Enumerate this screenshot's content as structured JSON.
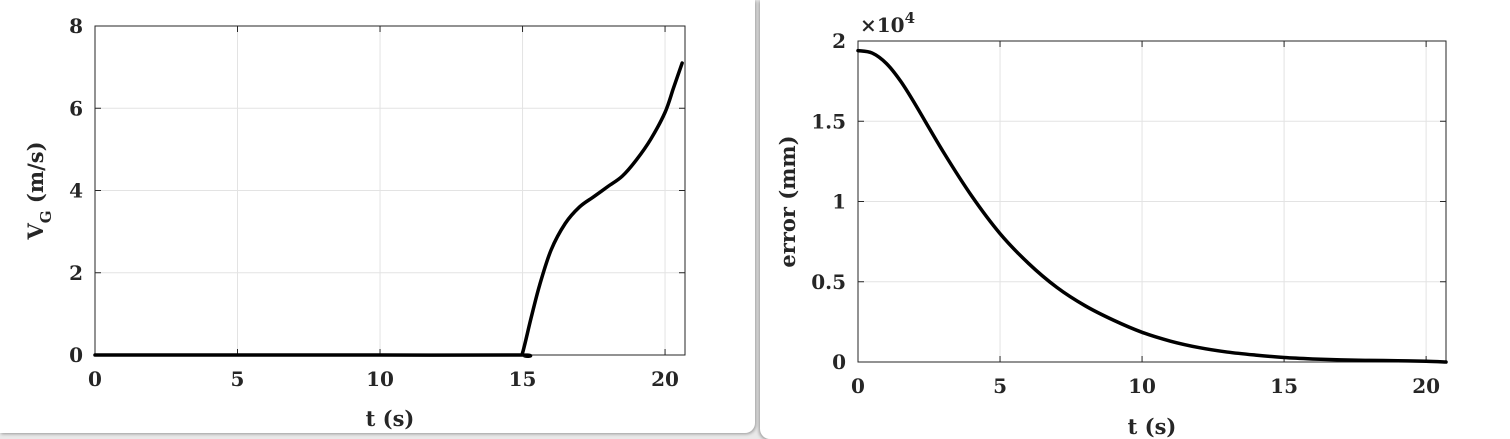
{
  "chart_data": [
    {
      "type": "line",
      "title": "",
      "xlabel": "t (s)",
      "ylabel": "V",
      "ylabel_subscript": "G",
      "ylabel_suffix": "(m/s)",
      "xlim": [
        0,
        20.7
      ],
      "ylim": [
        0,
        8
      ],
      "xticks": [
        0,
        5,
        10,
        15,
        20
      ],
      "yticks": [
        0,
        2,
        4,
        6,
        8
      ],
      "xtick_labels": [
        "0",
        "5",
        "10",
        "15",
        "20"
      ],
      "ytick_labels": [
        "0",
        "2",
        "4",
        "6",
        "8"
      ],
      "grid": true,
      "series": [
        {
          "x": [
            0,
            5,
            10,
            14.9,
            15.0,
            15.3,
            15.6,
            16.0,
            16.5,
            17.0,
            17.5,
            18.0,
            18.5,
            19.0,
            19.5,
            20.0,
            20.3,
            20.6
          ],
          "y": [
            0,
            0,
            0,
            0,
            0.05,
            0.9,
            1.7,
            2.55,
            3.2,
            3.6,
            3.85,
            4.1,
            4.35,
            4.75,
            5.25,
            5.9,
            6.5,
            7.1
          ]
        }
      ]
    },
    {
      "type": "line",
      "title": "",
      "xlabel": "t (s)",
      "ylabel": "error (mm)",
      "exponent_label": "×10",
      "exponent_power": "4",
      "xlim": [
        0,
        20.7
      ],
      "ylim": [
        0,
        20000
      ],
      "xticks": [
        0,
        5,
        10,
        15,
        20
      ],
      "yticks": [
        0,
        5000,
        10000,
        15000,
        20000
      ],
      "xtick_labels": [
        "0",
        "5",
        "10",
        "15",
        "20"
      ],
      "ytick_labels": [
        "0",
        "0.5",
        "1",
        "1.5",
        "2"
      ],
      "grid": true,
      "series": [
        {
          "x": [
            0,
            0.5,
            1,
            1.5,
            2,
            3,
            4,
            5,
            6,
            7,
            8,
            9,
            10,
            11,
            12,
            13,
            14,
            15,
            16,
            17,
            18,
            19,
            20,
            20.7
          ],
          "y": [
            19400,
            19250,
            18600,
            17500,
            16100,
            13100,
            10350,
            8000,
            6150,
            4650,
            3500,
            2600,
            1850,
            1300,
            900,
            620,
            430,
            280,
            190,
            130,
            100,
            80,
            50,
            0
          ]
        }
      ]
    }
  ]
}
